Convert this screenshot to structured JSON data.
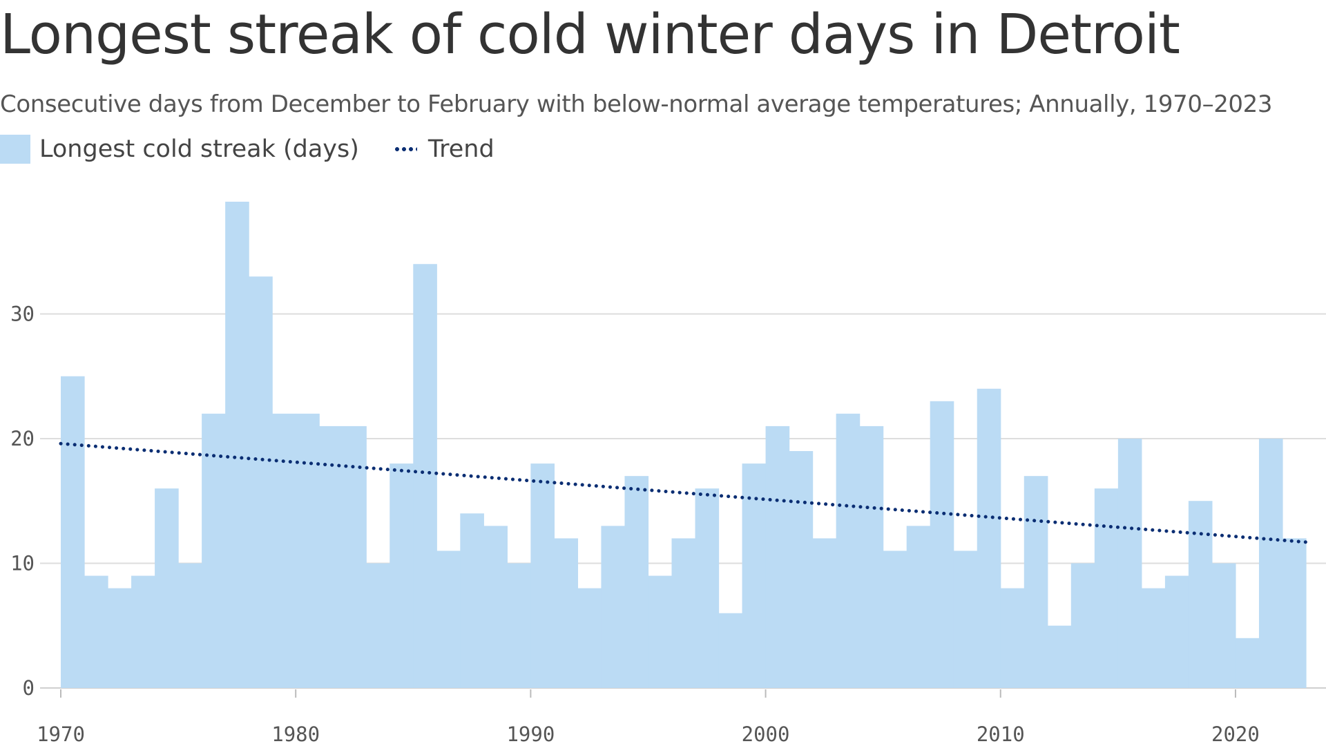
{
  "header": {
    "title": "Longest streak of cold winter days in Detroit",
    "subtitle": "Consecutive days from December to February with below-normal average temperatures; Annually, 1970–2023"
  },
  "legend": {
    "bar_label": "Longest cold streak (days)",
    "trend_label": "Trend"
  },
  "colors": {
    "bar": "#bbdbf4",
    "trend": "#0b2e73",
    "grid": "#dddddd",
    "text": "#333333"
  },
  "chart_data": {
    "type": "bar",
    "title": "Longest streak of cold winter days in Detroit",
    "xlabel": "",
    "ylabel": "",
    "ylim": [
      0,
      39
    ],
    "yticks": [
      0,
      10,
      20,
      30
    ],
    "xlim": [
      1970,
      2023
    ],
    "xticks": [
      1970,
      1980,
      1990,
      2000,
      2010,
      2020
    ],
    "x": [
      1970,
      1971,
      1972,
      1973,
      1974,
      1975,
      1976,
      1977,
      1978,
      1979,
      1980,
      1981,
      1982,
      1983,
      1984,
      1985,
      1986,
      1987,
      1988,
      1989,
      1990,
      1991,
      1992,
      1993,
      1994,
      1995,
      1996,
      1997,
      1998,
      1999,
      2000,
      2001,
      2002,
      2003,
      2004,
      2005,
      2006,
      2007,
      2008,
      2009,
      2010,
      2011,
      2012,
      2013,
      2014,
      2015,
      2016,
      2017,
      2018,
      2019,
      2020,
      2021,
      2022
    ],
    "series": [
      {
        "name": "Longest cold streak (days)",
        "values": [
          25,
          9,
          8,
          9,
          16,
          10,
          22,
          39,
          33,
          22,
          22,
          21,
          21,
          10,
          18,
          34,
          11,
          14,
          13,
          10,
          18,
          12,
          8,
          13,
          17,
          9,
          12,
          16,
          6,
          18,
          21,
          19,
          12,
          22,
          21,
          11,
          13,
          23,
          11,
          24,
          8,
          17,
          5,
          10,
          16,
          20,
          8,
          9,
          15,
          10,
          4,
          20,
          12
        ]
      },
      {
        "name": "Trend",
        "type": "line",
        "style": "dotted",
        "x": [
          1970,
          2023
        ],
        "values": [
          19.6,
          11.7
        ]
      }
    ]
  }
}
